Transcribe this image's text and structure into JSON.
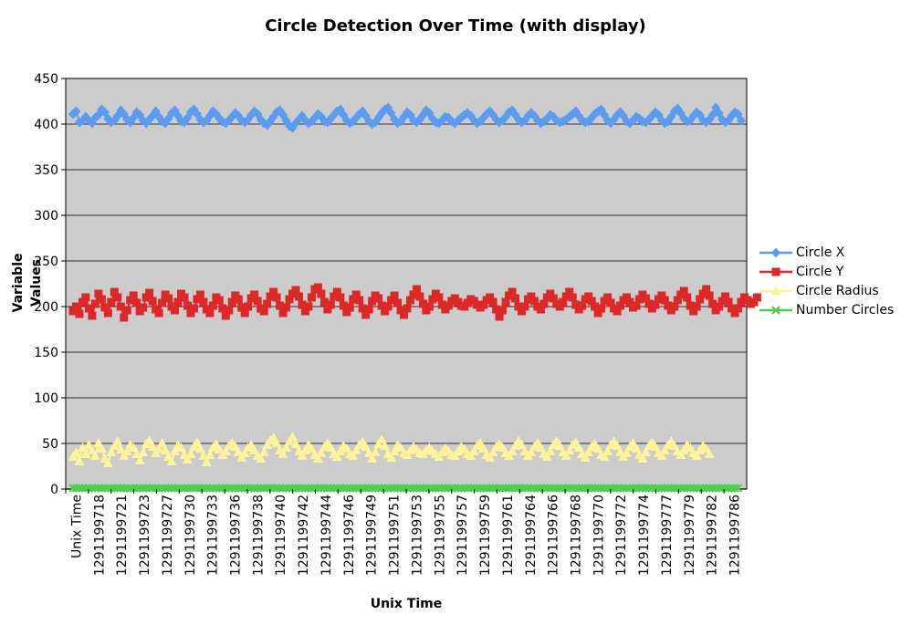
{
  "chart_data": {
    "type": "line",
    "title": "Circle Detection Over Time (with display)",
    "xlabel": "Unix Time",
    "ylabel": "Variable Values",
    "ylim": [
      0,
      450
    ],
    "yticks": [
      0,
      50,
      100,
      150,
      200,
      250,
      300,
      350,
      400,
      450
    ],
    "xtick_labels": [
      "Unix Time",
      "1291199718",
      "1291199721",
      "1291199723",
      "1291199727",
      "1291199730",
      "1291199733",
      "1291199736",
      "1291199738",
      "1291199740",
      "1291199742",
      "1291199744",
      "1291199746",
      "1291199749",
      "1291199751",
      "1291199753",
      "1291199755",
      "1291199757",
      "1291199759",
      "1291199761",
      "1291199764",
      "1291199766",
      "1291199768",
      "1291199770",
      "1291199772",
      "1291199774",
      "1291199777",
      "1291199779",
      "1291199782",
      "1291199786"
    ],
    "grid": "horizontal",
    "background": "#cccccc",
    "legend_position": "right",
    "series": [
      {
        "name": "Circle X",
        "color": "#5b9bf0",
        "marker": "diamond",
        "values": [
          411,
          414,
          402,
          404,
          408,
          404,
          401,
          407,
          410,
          416,
          413,
          406,
          402,
          404,
          409,
          415,
          411,
          405,
          402,
          407,
          413,
          410,
          404,
          401,
          405,
          409,
          414,
          408,
          403,
          401,
          406,
          412,
          415,
          409,
          403,
          402,
          407,
          413,
          416,
          411,
          405,
          402,
          404,
          409,
          414,
          411,
          406,
          403,
          401,
          404,
          408,
          412,
          409,
          404,
          402,
          405,
          410,
          414,
          411,
          405,
          401,
          399,
          403,
          408,
          413,
          415,
          410,
          404,
          398,
          396,
          401,
          405,
          409,
          404,
          401,
          403,
          407,
          411,
          408,
          403,
          402,
          406,
          410,
          414,
          416,
          410,
          404,
          401,
          403,
          407,
          411,
          414,
          409,
          403,
          400,
          402,
          407,
          412,
          416,
          418,
          412,
          405,
          401,
          403,
          408,
          413,
          410,
          404,
          402,
          405,
          410,
          415,
          412,
          406,
          402,
          401,
          404,
          408,
          407,
          403,
          401,
          404,
          407,
          410,
          412,
          409,
          404,
          401,
          403,
          407,
          411,
          414,
          410,
          405,
          402,
          404,
          408,
          413,
          415,
          410,
          405,
          402,
          404,
          409,
          412,
          409,
          404,
          401,
          403,
          406,
          410,
          408,
          404,
          402,
          403,
          405,
          408,
          411,
          414,
          409,
          404,
          402,
          403,
          407,
          411,
          414,
          416,
          410,
          404,
          401,
          405,
          410,
          413,
          409,
          403,
          401,
          404,
          408,
          406,
          403,
          402,
          405,
          409,
          413,
          410,
          404,
          401,
          403,
          408,
          414,
          417,
          412,
          406,
          403,
          404,
          409,
          413,
          410,
          404,
          402,
          405,
          410,
          418,
          412,
          405,
          402,
          404,
          409,
          413,
          411,
          404
        ]
      },
      {
        "name": "Circle Y",
        "color": "#dd2828",
        "marker": "square",
        "values": [
          195,
          200,
          192,
          205,
          210,
          198,
          190,
          203,
          214,
          208,
          199,
          193,
          205,
          216,
          210,
          200,
          188,
          196,
          207,
          212,
          204,
          195,
          199,
          210,
          215,
          206,
          197,
          193,
          204,
          213,
          209,
          200,
          196,
          205,
          214,
          210,
          201,
          193,
          198,
          208,
          213,
          205,
          197,
          193,
          201,
          210,
          207,
          198,
          190,
          196,
          205,
          212,
          208,
          199,
          193,
          200,
          209,
          213,
          206,
          198,
          195,
          203,
          211,
          216,
          210,
          201,
          193,
          199,
          208,
          214,
          218,
          211,
          202,
          195,
          200,
          210,
          219,
          221,
          214,
          205,
          197,
          202,
          211,
          216,
          210,
          201,
          194,
          199,
          208,
          213,
          207,
          198,
          191,
          197,
          206,
          212,
          209,
          201,
          195,
          200,
          207,
          212,
          204,
          196,
          191,
          198,
          207,
          213,
          219,
          211,
          203,
          196,
          200,
          208,
          214,
          210,
          202,
          197,
          201,
          206,
          209,
          205,
          201,
          200,
          204,
          208,
          206,
          202,
          199,
          202,
          207,
          210,
          205,
          197,
          189,
          196,
          205,
          212,
          216,
          209,
          200,
          195,
          200,
          208,
          211,
          206,
          200,
          197,
          203,
          210,
          214,
          209,
          203,
          200,
          205,
          211,
          216,
          210,
          202,
          197,
          201,
          208,
          211,
          206,
          200,
          193,
          198,
          206,
          210,
          204,
          198,
          195,
          201,
          207,
          210,
          205,
          199,
          201,
          208,
          213,
          209,
          203,
          198,
          202,
          208,
          212,
          207,
          201,
          196,
          200,
          207,
          213,
          217,
          210,
          201,
          195,
          200,
          208,
          214,
          219,
          212,
          203,
          196,
          200,
          206,
          211,
          205,
          198,
          193,
          198,
          205,
          210,
          207,
          203,
          205,
          210
        ]
      },
      {
        "name": "Circle Radius",
        "color": "#fff39a",
        "marker": "triangle",
        "values": [
          35,
          40,
          30,
          45,
          38,
          48,
          42,
          36,
          50,
          44,
          33,
          28,
          40,
          47,
          52,
          43,
          36,
          41,
          48,
          45,
          38,
          31,
          40,
          49,
          53,
          46,
          39,
          44,
          50,
          42,
          35,
          30,
          41,
          48,
          45,
          37,
          32,
          38,
          46,
          51,
          44,
          36,
          29,
          37,
          45,
          49,
          43,
          37,
          41,
          47,
          50,
          46,
          40,
          34,
          39,
          45,
          48,
          42,
          36,
          33,
          40,
          48,
          53,
          56,
          50,
          42,
          38,
          45,
          52,
          57,
          49,
          41,
          36,
          42,
          48,
          44,
          37,
          33,
          39,
          46,
          50,
          45,
          38,
          35,
          41,
          47,
          44,
          38,
          36,
          42,
          48,
          51,
          46,
          39,
          33,
          40,
          49,
          54,
          47,
          38,
          34,
          41,
          48,
          45,
          39,
          37,
          42,
          46,
          43,
          39,
          38,
          42,
          45,
          41,
          38,
          35,
          40,
          44,
          41,
          37,
          36,
          41,
          46,
          43,
          38,
          36,
          41,
          47,
          50,
          44,
          37,
          34,
          40,
          46,
          49,
          45,
          39,
          36,
          41,
          47,
          52,
          48,
          41,
          36,
          40,
          46,
          50,
          45,
          38,
          35,
          41,
          48,
          52,
          47,
          40,
          36,
          42,
          48,
          51,
          45,
          38,
          34,
          40,
          46,
          49,
          44,
          37,
          35,
          41,
          48,
          52,
          47,
          40,
          35,
          39,
          46,
          50,
          44,
          37,
          33,
          40,
          47,
          51,
          46,
          39,
          36,
          42,
          48,
          52,
          47,
          41,
          37,
          42,
          48,
          45,
          39,
          36,
          42,
          47,
          44,
          38
        ]
      },
      {
        "name": "Number Circles",
        "color": "#4dcc4d",
        "marker": "x",
        "values": [
          1,
          1,
          1,
          1,
          1,
          1,
          1,
          1,
          1,
          1,
          1,
          1,
          1,
          1,
          1,
          1,
          1,
          1,
          1,
          1,
          1,
          1,
          1,
          1,
          1,
          1,
          1,
          1,
          1,
          1,
          1,
          1,
          1,
          1,
          1,
          1,
          1,
          1,
          1,
          1,
          1,
          1,
          1,
          1,
          1,
          1,
          1,
          1,
          1,
          1,
          1,
          1,
          1,
          1,
          1,
          1,
          1,
          1,
          1,
          1,
          1,
          1,
          1,
          1,
          1,
          1,
          1,
          1,
          1,
          1,
          1,
          1,
          1,
          1,
          1,
          1,
          1,
          1,
          1,
          1,
          1,
          1,
          1,
          1,
          1,
          1,
          1,
          1,
          1,
          1,
          1,
          1,
          1,
          1,
          1,
          1,
          1,
          1,
          1,
          1,
          1,
          1,
          1,
          1,
          1,
          1,
          1,
          1,
          1,
          1,
          1,
          1,
          1,
          1,
          1,
          1,
          1,
          1,
          1,
          1,
          1,
          1,
          1,
          1,
          1,
          1,
          1,
          1,
          1,
          1,
          1,
          1,
          1,
          1,
          1,
          1,
          1,
          1,
          1,
          1,
          1,
          1,
          1,
          1,
          1,
          1,
          1,
          1,
          1,
          1,
          1,
          1,
          1,
          1,
          1,
          1,
          1,
          1,
          1,
          1,
          1,
          1,
          1,
          1,
          1,
          1,
          1,
          1,
          1,
          1,
          1,
          1,
          1,
          1,
          1,
          1,
          1,
          1,
          1,
          1,
          1,
          1,
          1,
          1,
          1,
          1,
          1,
          1,
          1,
          1,
          1,
          1,
          1,
          1,
          1,
          1,
          1,
          1,
          1,
          1,
          1,
          1,
          1,
          1,
          1,
          1,
          1,
          1,
          1,
          1
        ]
      }
    ]
  }
}
